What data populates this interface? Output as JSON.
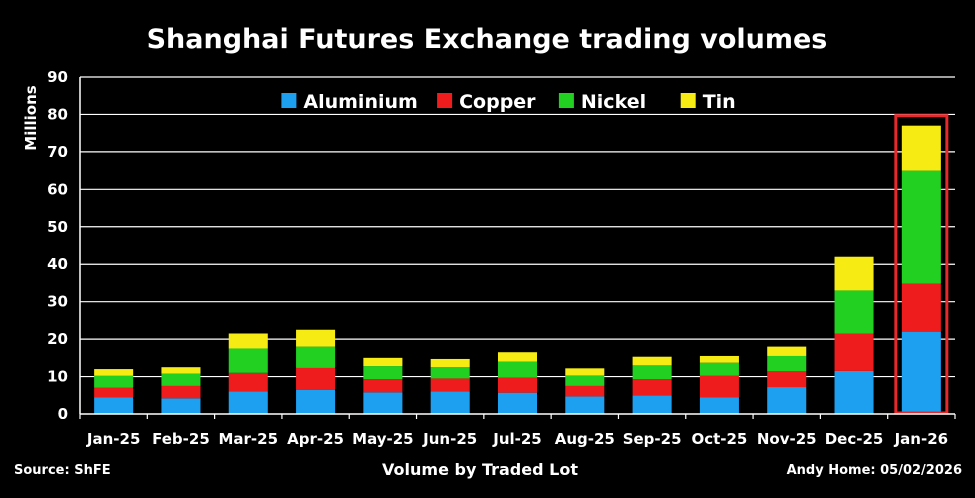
{
  "chart_data": {
    "type": "bar",
    "stacked": true,
    "title": "Shanghai Futures Exchange trading volumes",
    "ylabel": "Millions",
    "xlabel": "Volume by Traded Lot",
    "ylim": [
      0,
      90
    ],
    "yticks": [
      0,
      10,
      20,
      30,
      40,
      50,
      60,
      70,
      80,
      90
    ],
    "grid": true,
    "legend_position": "top-center",
    "categories": [
      "Jan-25",
      "Feb-25",
      "Mar-25",
      "Apr-25",
      "May-25",
      "Jun-25",
      "Jul-25",
      "Aug-25",
      "Sep-25",
      "Oct-25",
      "Nov-25",
      "Dec-25",
      "Jan-26"
    ],
    "series": [
      {
        "name": "Aluminium",
        "color": "#1ea0f0",
        "values": [
          4.5,
          4.2,
          6.0,
          6.5,
          5.8,
          6.0,
          5.7,
          4.7,
          5.0,
          4.5,
          7.2,
          11.5,
          22.0
        ]
      },
      {
        "name": "Copper",
        "color": "#ee1c1c",
        "values": [
          2.5,
          3.3,
          5.0,
          5.8,
          3.5,
          3.5,
          4.0,
          2.8,
          4.3,
          5.7,
          4.2,
          10.0,
          12.8
        ]
      },
      {
        "name": "Nickel",
        "color": "#22d022",
        "values": [
          3.2,
          3.3,
          6.5,
          5.7,
          3.5,
          3.0,
          4.3,
          2.8,
          3.7,
          3.5,
          4.1,
          11.5,
          30.2
        ]
      },
      {
        "name": "Tin",
        "color": "#f6ec14",
        "values": [
          1.8,
          1.7,
          4.0,
          4.5,
          2.2,
          2.2,
          2.5,
          1.9,
          2.3,
          1.8,
          2.5,
          9.0,
          12.0
        ]
      }
    ],
    "highlight": {
      "category": "Jan-26",
      "color": "#e8292b"
    },
    "source": "Source: ShFE",
    "credit": "Andy Home: 05/02/2026"
  }
}
